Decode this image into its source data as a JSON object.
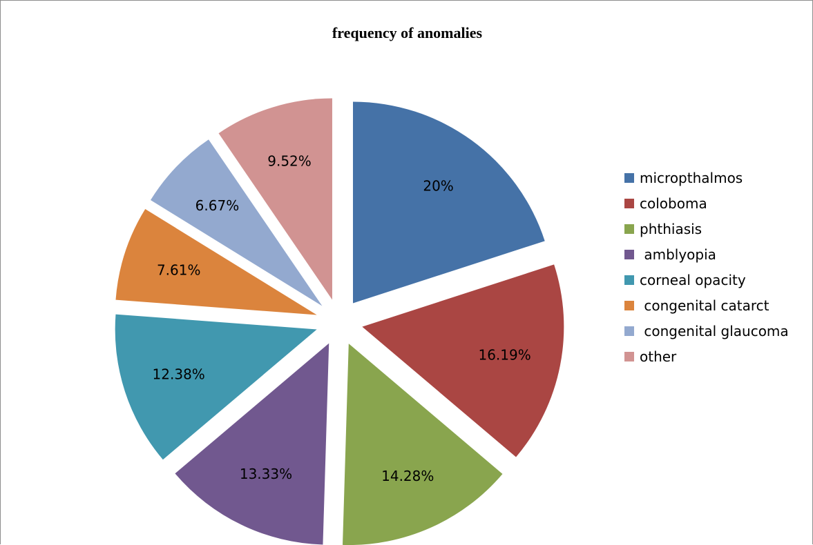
{
  "chart_data": {
    "type": "pie",
    "title": "frequency of anomalies",
    "exploded": true,
    "legend_position": "right",
    "slices": [
      {
        "name": "micropthalmos",
        "value": 20,
        "label": "20%",
        "color": "#4572A7"
      },
      {
        "name": "coloboma",
        "value": 16.19,
        "label": "16.19%",
        "color": "#AA4643"
      },
      {
        "name": "phthiasis",
        "value": 14.28,
        "label": "14.28%",
        "color": "#89A54E"
      },
      {
        "name": " amblyopia",
        "value": 13.33,
        "label": "13.33%",
        "color": "#71588F"
      },
      {
        "name": "corneal opacity",
        "value": 12.38,
        "label": "12.38%",
        "color": "#4198AF"
      },
      {
        "name": " congenital catarct",
        "value": 7.61,
        "label": "7.61%",
        "color": "#DB843D"
      },
      {
        "name": " congenital glaucoma",
        "value": 6.67,
        "label": "6.67%",
        "color": "#93A9CF"
      },
      {
        "name": "other",
        "value": 9.52,
        "label": "9.52%",
        "color": "#D19392"
      }
    ]
  }
}
